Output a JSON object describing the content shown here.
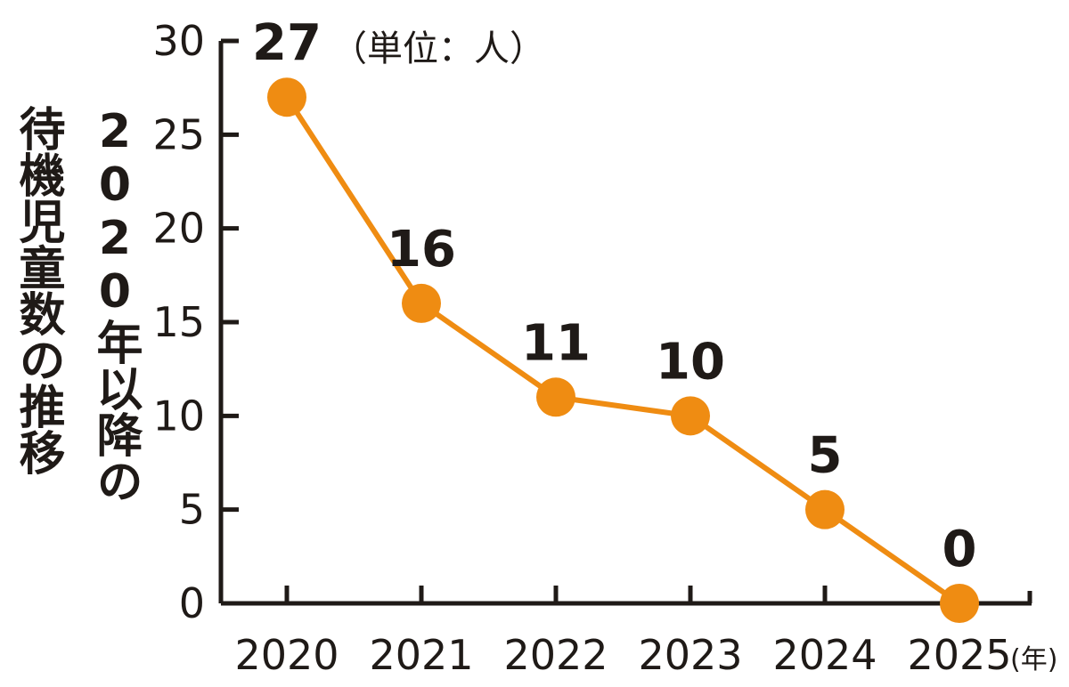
{
  "chart_data": {
    "type": "line",
    "title_lines": [
      "2020年以降の",
      "待機児童数の推移"
    ],
    "unit_note": "（単位：人）",
    "x_unit": "(年)",
    "categories": [
      "2020",
      "2021",
      "2022",
      "2023",
      "2024",
      "2025"
    ],
    "series": [
      {
        "values": [
          27,
          16,
          11,
          10,
          5,
          0
        ]
      }
    ],
    "data_labels": [
      "27",
      "16",
      "11",
      "10",
      "5",
      "0"
    ],
    "y_ticks": [
      0,
      5,
      10,
      15,
      20,
      25,
      30
    ],
    "y_tick_labels": [
      "0",
      "5",
      "10",
      "15",
      "20",
      "25",
      "30"
    ],
    "ylim": [
      0,
      30
    ],
    "grid": false,
    "colors": {
      "line": "#ef8c12",
      "marker": "#ef8c12",
      "axis": "#1f1a17",
      "text": "#1f1a17"
    }
  }
}
